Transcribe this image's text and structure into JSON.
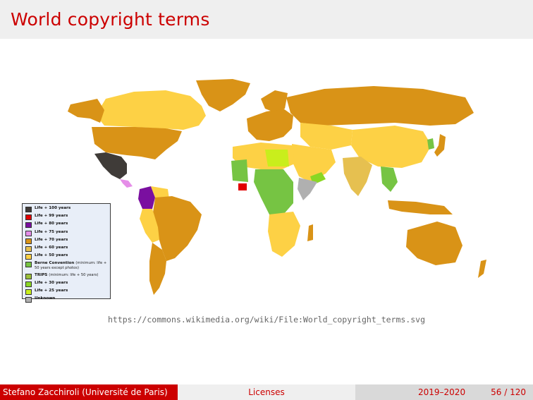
{
  "slide": {
    "title": "World copyright terms",
    "source_url": "https://commons.wikimedia.org/wiki/File:World_copyright_terms.svg"
  },
  "legend": {
    "items": [
      {
        "label": "Life + 100 years",
        "note": "",
        "color": "#3f3b38"
      },
      {
        "label": "Life + 99 years",
        "note": "",
        "color": "#e10000"
      },
      {
        "label": "Life + 80 years",
        "note": "",
        "color": "#7a0fa0"
      },
      {
        "label": "Life + 75 years",
        "note": "",
        "color": "#e58ee8"
      },
      {
        "label": "Life + 70 years",
        "note": "",
        "color": "#d99317"
      },
      {
        "label": "Life + 60 years",
        "note": "",
        "color": "#e6c050"
      },
      {
        "label": "Life + 50 years",
        "note": "",
        "color": "#fdd145"
      },
      {
        "label": "Berne Convention",
        "note": "(minimum: life + 50 years except photos)",
        "color": "#76c443"
      },
      {
        "label": "TRIPS",
        "note": "(minimum: life + 50 years)",
        "color": "#9bbf3a"
      },
      {
        "label": "Life + 30 years",
        "note": "",
        "color": "#8ad724"
      },
      {
        "label": "Life + 25 years",
        "note": "",
        "color": "#c9ee1c"
      },
      {
        "label": "Unknown",
        "note": "",
        "color": "#b0b0b0"
      }
    ]
  },
  "footer": {
    "author": "Stefano Zacchiroli  (Université de Paris)",
    "topic": "Licenses",
    "date": "2019–2020",
    "page": "56 / 120"
  },
  "colors": {
    "accent": "#cc0000",
    "title_bar": "#efefef",
    "legend_background": "#e8eef8"
  }
}
